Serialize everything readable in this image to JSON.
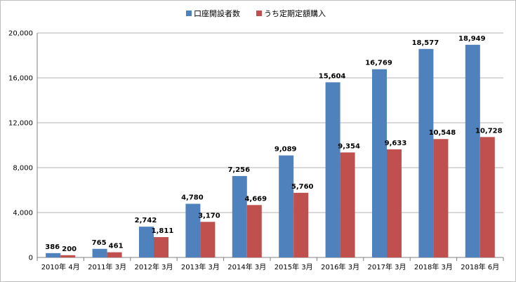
{
  "chart_data": {
    "type": "bar",
    "categories": [
      "2010年 4月",
      "2011年 3月",
      "2012年 3月",
      "2013年 3月",
      "2014年 3月",
      "2015年 3月",
      "2016年 3月",
      "2017年 3月",
      "2018年 3月",
      "2018年 6月"
    ],
    "series": [
      {
        "name": "口座開設者数",
        "color": "#4f81bd",
        "values": [
          386,
          765,
          2742,
          4780,
          7256,
          9089,
          15604,
          16769,
          18577,
          18949
        ],
        "labels": [
          "386",
          "765",
          "2,742",
          "4,780",
          "7,256",
          "9,089",
          "15,604",
          "16,769",
          "18,577",
          "18,949"
        ]
      },
      {
        "name": "うち定期定額購入",
        "color": "#c0504d",
        "values": [
          200,
          461,
          1811,
          3170,
          4669,
          5760,
          9354,
          9633,
          10548,
          10728
        ],
        "labels": [
          "200",
          "461",
          "1,811",
          "3,170",
          "4,669",
          "5,760",
          "9,354",
          "9,633",
          "10,548",
          "10,728"
        ]
      }
    ],
    "title": "",
    "xlabel": "",
    "ylabel": "",
    "ylim": [
      0,
      20000
    ],
    "yticks": [
      0,
      4000,
      8000,
      12000,
      16000,
      20000
    ],
    "ytick_labels": [
      "0",
      "4,000",
      "8,000",
      "12,000",
      "16,000",
      "20,000"
    ],
    "grid": true,
    "legend_position": "top-center"
  }
}
